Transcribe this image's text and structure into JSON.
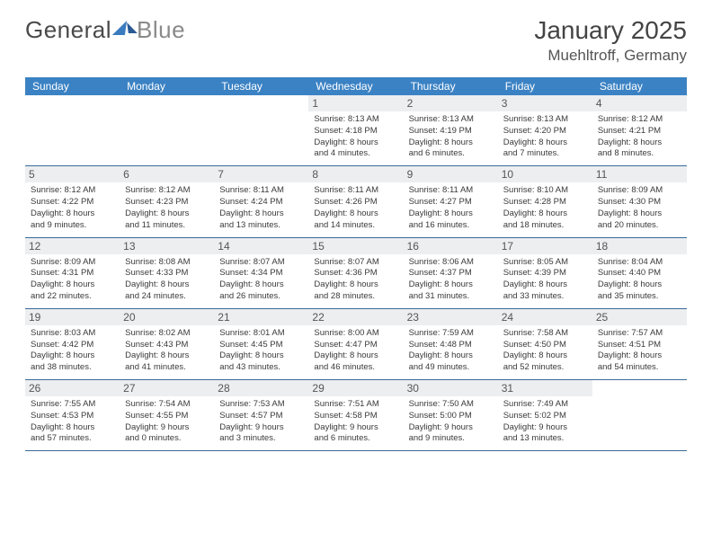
{
  "brand": {
    "part1": "General",
    "part2": "Blue"
  },
  "title": "January 2025",
  "location": "Muehltroff, Germany",
  "header_bg": "#3b82c4",
  "header_text": "#ffffff",
  "daynum_bg": "#eceef0",
  "border_color": "#3b6a9a",
  "text_color": "#3a3a3a",
  "fontsize_title": 28,
  "fontsize_location": 17,
  "fontsize_dayhead": 12,
  "fontsize_cell": 9.5,
  "day_names": [
    "Sunday",
    "Monday",
    "Tuesday",
    "Wednesday",
    "Thursday",
    "Friday",
    "Saturday"
  ],
  "weeks": [
    [
      {
        "n": "",
        "sunrise": "",
        "sunset": "",
        "dl_h": "",
        "dl_m": ""
      },
      {
        "n": "",
        "sunrise": "",
        "sunset": "",
        "dl_h": "",
        "dl_m": ""
      },
      {
        "n": "",
        "sunrise": "",
        "sunset": "",
        "dl_h": "",
        "dl_m": ""
      },
      {
        "n": "1",
        "sunrise": "8:13 AM",
        "sunset": "4:18 PM",
        "dl_h": "8",
        "dl_m": "4"
      },
      {
        "n": "2",
        "sunrise": "8:13 AM",
        "sunset": "4:19 PM",
        "dl_h": "8",
        "dl_m": "6"
      },
      {
        "n": "3",
        "sunrise": "8:13 AM",
        "sunset": "4:20 PM",
        "dl_h": "8",
        "dl_m": "7"
      },
      {
        "n": "4",
        "sunrise": "8:12 AM",
        "sunset": "4:21 PM",
        "dl_h": "8",
        "dl_m": "8"
      }
    ],
    [
      {
        "n": "5",
        "sunrise": "8:12 AM",
        "sunset": "4:22 PM",
        "dl_h": "8",
        "dl_m": "9"
      },
      {
        "n": "6",
        "sunrise": "8:12 AM",
        "sunset": "4:23 PM",
        "dl_h": "8",
        "dl_m": "11"
      },
      {
        "n": "7",
        "sunrise": "8:11 AM",
        "sunset": "4:24 PM",
        "dl_h": "8",
        "dl_m": "13"
      },
      {
        "n": "8",
        "sunrise": "8:11 AM",
        "sunset": "4:26 PM",
        "dl_h": "8",
        "dl_m": "14"
      },
      {
        "n": "9",
        "sunrise": "8:11 AM",
        "sunset": "4:27 PM",
        "dl_h": "8",
        "dl_m": "16"
      },
      {
        "n": "10",
        "sunrise": "8:10 AM",
        "sunset": "4:28 PM",
        "dl_h": "8",
        "dl_m": "18"
      },
      {
        "n": "11",
        "sunrise": "8:09 AM",
        "sunset": "4:30 PM",
        "dl_h": "8",
        "dl_m": "20"
      }
    ],
    [
      {
        "n": "12",
        "sunrise": "8:09 AM",
        "sunset": "4:31 PM",
        "dl_h": "8",
        "dl_m": "22"
      },
      {
        "n": "13",
        "sunrise": "8:08 AM",
        "sunset": "4:33 PM",
        "dl_h": "8",
        "dl_m": "24"
      },
      {
        "n": "14",
        "sunrise": "8:07 AM",
        "sunset": "4:34 PM",
        "dl_h": "8",
        "dl_m": "26"
      },
      {
        "n": "15",
        "sunrise": "8:07 AM",
        "sunset": "4:36 PM",
        "dl_h": "8",
        "dl_m": "28"
      },
      {
        "n": "16",
        "sunrise": "8:06 AM",
        "sunset": "4:37 PM",
        "dl_h": "8",
        "dl_m": "31"
      },
      {
        "n": "17",
        "sunrise": "8:05 AM",
        "sunset": "4:39 PM",
        "dl_h": "8",
        "dl_m": "33"
      },
      {
        "n": "18",
        "sunrise": "8:04 AM",
        "sunset": "4:40 PM",
        "dl_h": "8",
        "dl_m": "35"
      }
    ],
    [
      {
        "n": "19",
        "sunrise": "8:03 AM",
        "sunset": "4:42 PM",
        "dl_h": "8",
        "dl_m": "38"
      },
      {
        "n": "20",
        "sunrise": "8:02 AM",
        "sunset": "4:43 PM",
        "dl_h": "8",
        "dl_m": "41"
      },
      {
        "n": "21",
        "sunrise": "8:01 AM",
        "sunset": "4:45 PM",
        "dl_h": "8",
        "dl_m": "43"
      },
      {
        "n": "22",
        "sunrise": "8:00 AM",
        "sunset": "4:47 PM",
        "dl_h": "8",
        "dl_m": "46"
      },
      {
        "n": "23",
        "sunrise": "7:59 AM",
        "sunset": "4:48 PM",
        "dl_h": "8",
        "dl_m": "49"
      },
      {
        "n": "24",
        "sunrise": "7:58 AM",
        "sunset": "4:50 PM",
        "dl_h": "8",
        "dl_m": "52"
      },
      {
        "n": "25",
        "sunrise": "7:57 AM",
        "sunset": "4:51 PM",
        "dl_h": "8",
        "dl_m": "54"
      }
    ],
    [
      {
        "n": "26",
        "sunrise": "7:55 AM",
        "sunset": "4:53 PM",
        "dl_h": "8",
        "dl_m": "57"
      },
      {
        "n": "27",
        "sunrise": "7:54 AM",
        "sunset": "4:55 PM",
        "dl_h": "9",
        "dl_m": "0"
      },
      {
        "n": "28",
        "sunrise": "7:53 AM",
        "sunset": "4:57 PM",
        "dl_h": "9",
        "dl_m": "3"
      },
      {
        "n": "29",
        "sunrise": "7:51 AM",
        "sunset": "4:58 PM",
        "dl_h": "9",
        "dl_m": "6"
      },
      {
        "n": "30",
        "sunrise": "7:50 AM",
        "sunset": "5:00 PM",
        "dl_h": "9",
        "dl_m": "9"
      },
      {
        "n": "31",
        "sunrise": "7:49 AM",
        "sunset": "5:02 PM",
        "dl_h": "9",
        "dl_m": "13"
      },
      {
        "n": "",
        "sunrise": "",
        "sunset": "",
        "dl_h": "",
        "dl_m": ""
      }
    ]
  ]
}
